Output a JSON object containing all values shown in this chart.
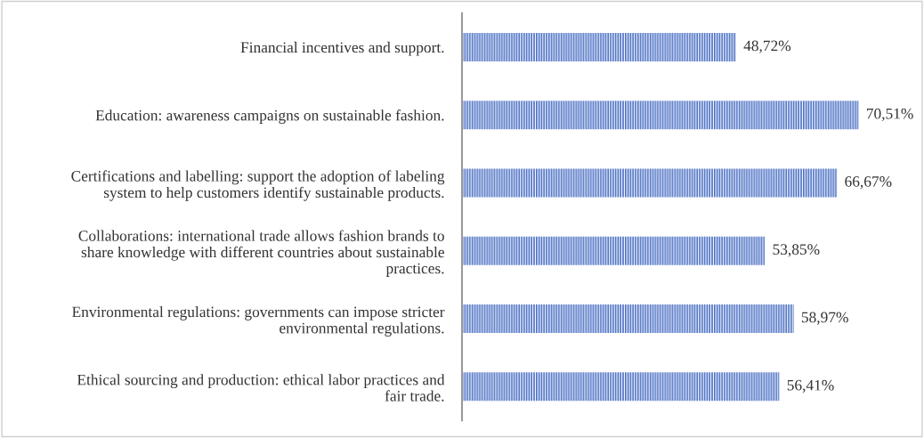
{
  "chart_data": {
    "type": "bar",
    "orientation": "horizontal",
    "categories": [
      "Financial incentives and support.",
      "Education: awareness campaigns on sustainable fashion.",
      "Certifications and labelling: support the adoption of labeling\nsystem to help customers identify sustainable products.",
      "Collaborations: international trade allows fashion brands to\nshare knowledge with different countries about sustainable\npractices.",
      "Environmental regulations: governments can impose stricter\nenvironmental regulations.",
      "Ethical sourcing and production: ethical labor practices and\nfair trade."
    ],
    "values": [
      48.72,
      70.51,
      66.67,
      53.85,
      58.97,
      56.41
    ],
    "value_labels": [
      "48,72%",
      "70,51%",
      "66,67%",
      "53,85%",
      "58,97%",
      "56,41%"
    ],
    "color": "#4a6fc4",
    "grid": false,
    "legend": false
  }
}
